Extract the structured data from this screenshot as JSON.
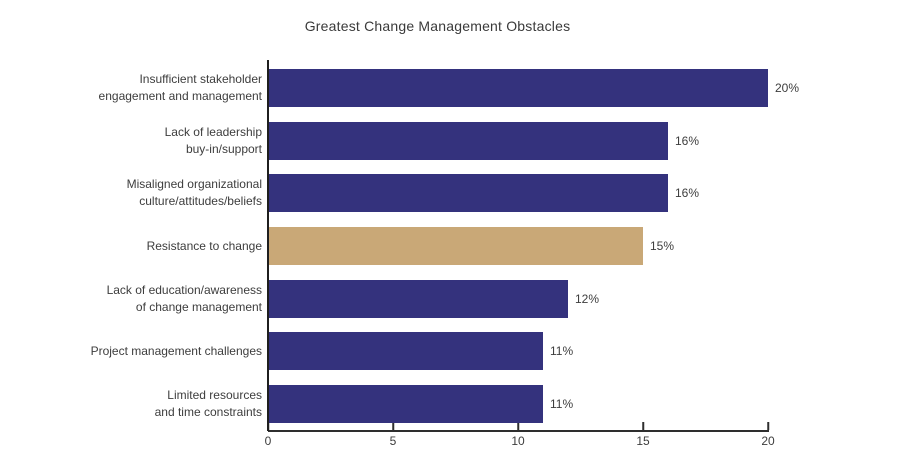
{
  "chart_data": {
    "type": "bar",
    "orientation": "horizontal",
    "title": "Greatest Change Management Obstacles",
    "categories": [
      "Insufficient stakeholder\nengagement and management",
      "Lack of leadership\nbuy-in/support",
      "Misaligned organizational\nculture/attitudes/beliefs",
      "Resistance to change",
      "Lack of education/awareness\nof change management",
      "Project management challenges",
      "Limited resources\nand time constraints"
    ],
    "values": [
      20,
      16,
      16,
      15,
      12,
      11,
      11
    ],
    "value_labels": [
      "20%",
      "16%",
      "16%",
      "15%",
      "12%",
      "11%",
      "11%"
    ],
    "bar_colors": [
      "#34327d",
      "#34327d",
      "#34327d",
      "#c9a877",
      "#34327d",
      "#34327d",
      "#34327d"
    ],
    "highlight_index": 3,
    "xlabel": "",
    "ylabel": "",
    "xlim": [
      0,
      20
    ],
    "xticks": [
      0,
      5,
      10,
      15,
      20
    ],
    "grid": false,
    "legend": "none"
  },
  "colors": {
    "bar_default": "#34327d",
    "bar_highlight": "#c9a877",
    "text": "#3d3d3d",
    "axis": "#2e2e2e",
    "background": "#ffffff"
  }
}
